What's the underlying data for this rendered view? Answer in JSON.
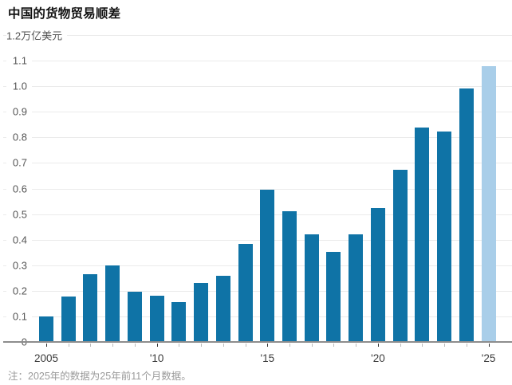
{
  "chart_data": {
    "type": "bar",
    "title": "中国的货物贸易顺差",
    "unit_label": "万亿美元",
    "categories": [
      2005,
      2006,
      2007,
      2008,
      2009,
      2010,
      2011,
      2012,
      2013,
      2014,
      2015,
      2016,
      2017,
      2018,
      2019,
      2020,
      2021,
      2022,
      2023,
      2024,
      2025
    ],
    "values": [
      0.1,
      0.177,
      0.264,
      0.298,
      0.196,
      0.181,
      0.155,
      0.231,
      0.259,
      0.383,
      0.594,
      0.51,
      0.42,
      0.351,
      0.421,
      0.524,
      0.672,
      0.837,
      0.822,
      0.992,
      1.077
    ],
    "highlight_category": 2025,
    "ylim": [
      0,
      1.2
    ],
    "ytick_step": 0.1,
    "ytick_labels": [
      "1.2万亿美元",
      "1.1",
      "1.0",
      "0.9",
      "0.8",
      "0.7",
      "0.6",
      "0.5",
      "0.4",
      "0.3",
      "0.2",
      "0.1",
      "0"
    ],
    "xticks": [
      {
        "index": 0,
        "label": "2005"
      },
      {
        "index": 5,
        "label": "'10"
      },
      {
        "index": 10,
        "label": "'15"
      },
      {
        "index": 15,
        "label": "'20"
      },
      {
        "index": 20,
        "label": "'25"
      }
    ],
    "grid": "horizontal",
    "legend": "none",
    "note": "注：2025年的数据为25年前11个月数据。",
    "colors": {
      "bar": "#0f73a6",
      "bar_highlight": "#a9cee9",
      "gridline": "#ebebeb",
      "axis_line": "#8d8d8d",
      "tick_major": "#333333",
      "tick_minor": "#bcbcbc",
      "background": "#ffffff"
    }
  }
}
